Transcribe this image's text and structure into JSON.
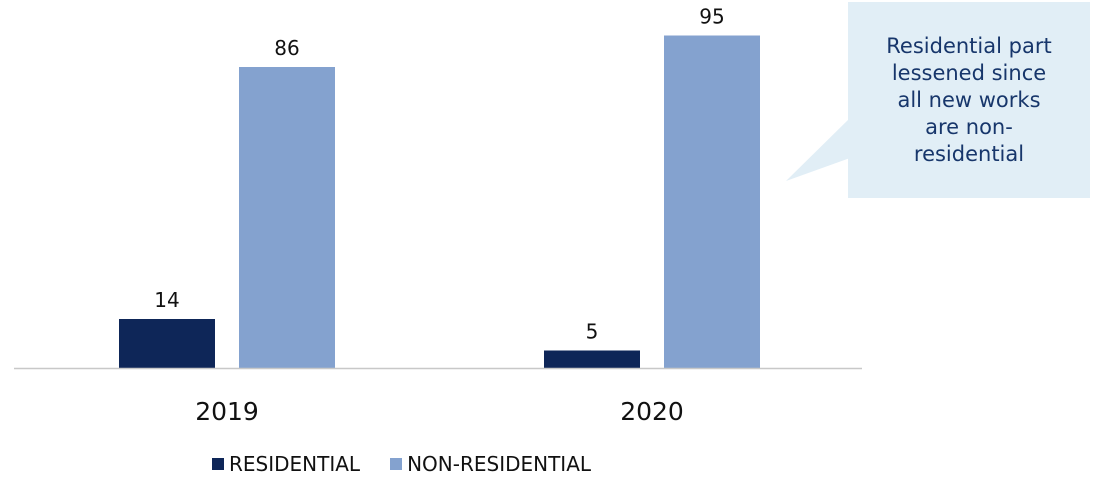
{
  "chart_data": {
    "type": "bar",
    "categories": [
      "2019",
      "2020"
    ],
    "series": [
      {
        "name": "RESIDENTIAL",
        "values": [
          14,
          5
        ],
        "color": "#0e2658"
      },
      {
        "name": "NON-RESIDENTIAL",
        "values": [
          86,
          95
        ],
        "color": "#84a2cf"
      }
    ],
    "ylim": [
      0,
      100
    ],
    "data_labels": true,
    "grid": false,
    "legend_position": "bottom",
    "axis_color": "#c8c8c8"
  },
  "callout": {
    "text": "Residential part\nlessened since\nall new works\nare non-\nresidential",
    "background": "#e1eef6",
    "text_color": "#17366b"
  }
}
